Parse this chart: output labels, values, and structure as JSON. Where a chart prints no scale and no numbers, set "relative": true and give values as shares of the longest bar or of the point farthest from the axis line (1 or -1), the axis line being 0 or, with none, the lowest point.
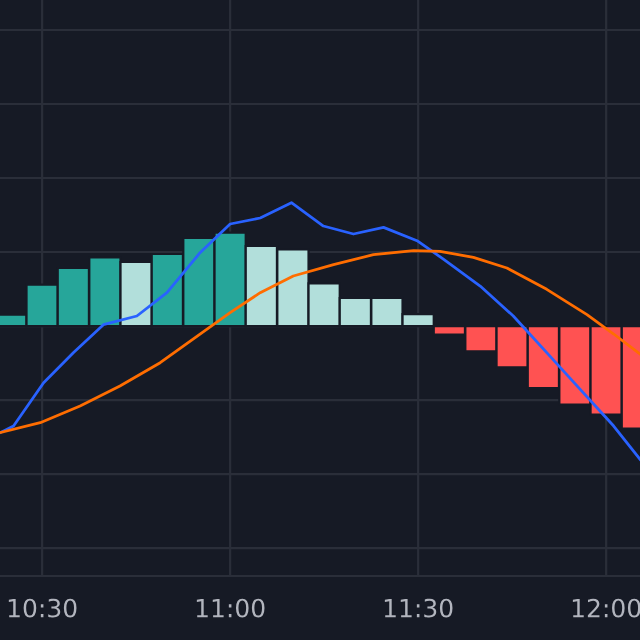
{
  "chart_data": {
    "type": "bar",
    "relative": true,
    "grid": true,
    "legend": false,
    "xlim": [
      10.388,
      12.09
    ],
    "xticks": [
      {
        "value": 10.5,
        "label": "10:30"
      },
      {
        "value": 11,
        "label": "11:00"
      },
      {
        "value": 11.5,
        "label": "11:30"
      },
      {
        "value": 12,
        "label": "12:00"
      }
    ],
    "series": [
      {
        "x": [
          10.417,
          10.5,
          10.583,
          10.667,
          10.75,
          10.833,
          10.917,
          11,
          11.083,
          11.167,
          11.25,
          11.333,
          11.417,
          11.5,
          11.583,
          11.667,
          11.75,
          11.833,
          11.917,
          12,
          12.083
        ],
        "values": [
          0.085,
          0.31,
          0.435,
          0.515,
          0.48,
          0.54,
          0.66,
          0.7,
          0.6,
          0.575,
          0.32,
          0.21,
          0.21,
          0.09,
          -0.065,
          -0.19,
          -0.31,
          -0.465,
          -0.59,
          -0.665,
          -0.77
        ],
        "colors": [
          "#26a69a",
          "#26a69a",
          "#26a69a",
          "#26a69a",
          "#b2dfdb",
          "#26a69a",
          "#26a69a",
          "#26a69a",
          "#b2dfdb",
          "#b2dfdb",
          "#b2dfdb",
          "#b2dfdb",
          "#b2dfdb",
          "#b2dfdb",
          "#ff5252",
          "#ff5252",
          "#ff5252",
          "#ff5252",
          "#ff5252",
          "#ff5252",
          "#ff5252"
        ]
      },
      {
        "type": "line",
        "color": "#2962ff",
        "x": [
          10.388,
          10.424,
          10.504,
          10.583,
          10.663,
          10.752,
          10.832,
          10.92,
          11.0,
          11.08,
          11.163,
          11.248,
          11.328,
          11.408,
          11.497,
          11.568,
          11.665,
          11.753,
          11.842,
          11.931,
          12.02,
          12.09
        ],
        "values": [
          -0.8,
          -0.75,
          -0.425,
          -0.2,
          0.01,
          0.075,
          0.25,
          0.55,
          0.765,
          0.81,
          0.925,
          0.75,
          0.69,
          0.74,
          0.64,
          0.5,
          0.3,
          0.075,
          -0.2,
          -0.475,
          -0.75,
          -1.0
        ]
      },
      {
        "type": "line",
        "color": "#ff6d00",
        "x": [
          10.388,
          10.495,
          10.601,
          10.707,
          10.814,
          10.92,
          11.0,
          11.08,
          11.168,
          11.275,
          11.381,
          11.488,
          11.558,
          11.647,
          11.736,
          11.842,
          11.949,
          12.02,
          12.09
        ],
        "values": [
          -0.8,
          -0.725,
          -0.6,
          -0.45,
          -0.275,
          -0.06,
          0.1,
          0.25,
          0.375,
          0.46,
          0.535,
          0.565,
          0.56,
          0.515,
          0.435,
          0.275,
          0.085,
          -0.06,
          -0.21
        ]
      }
    ]
  }
}
